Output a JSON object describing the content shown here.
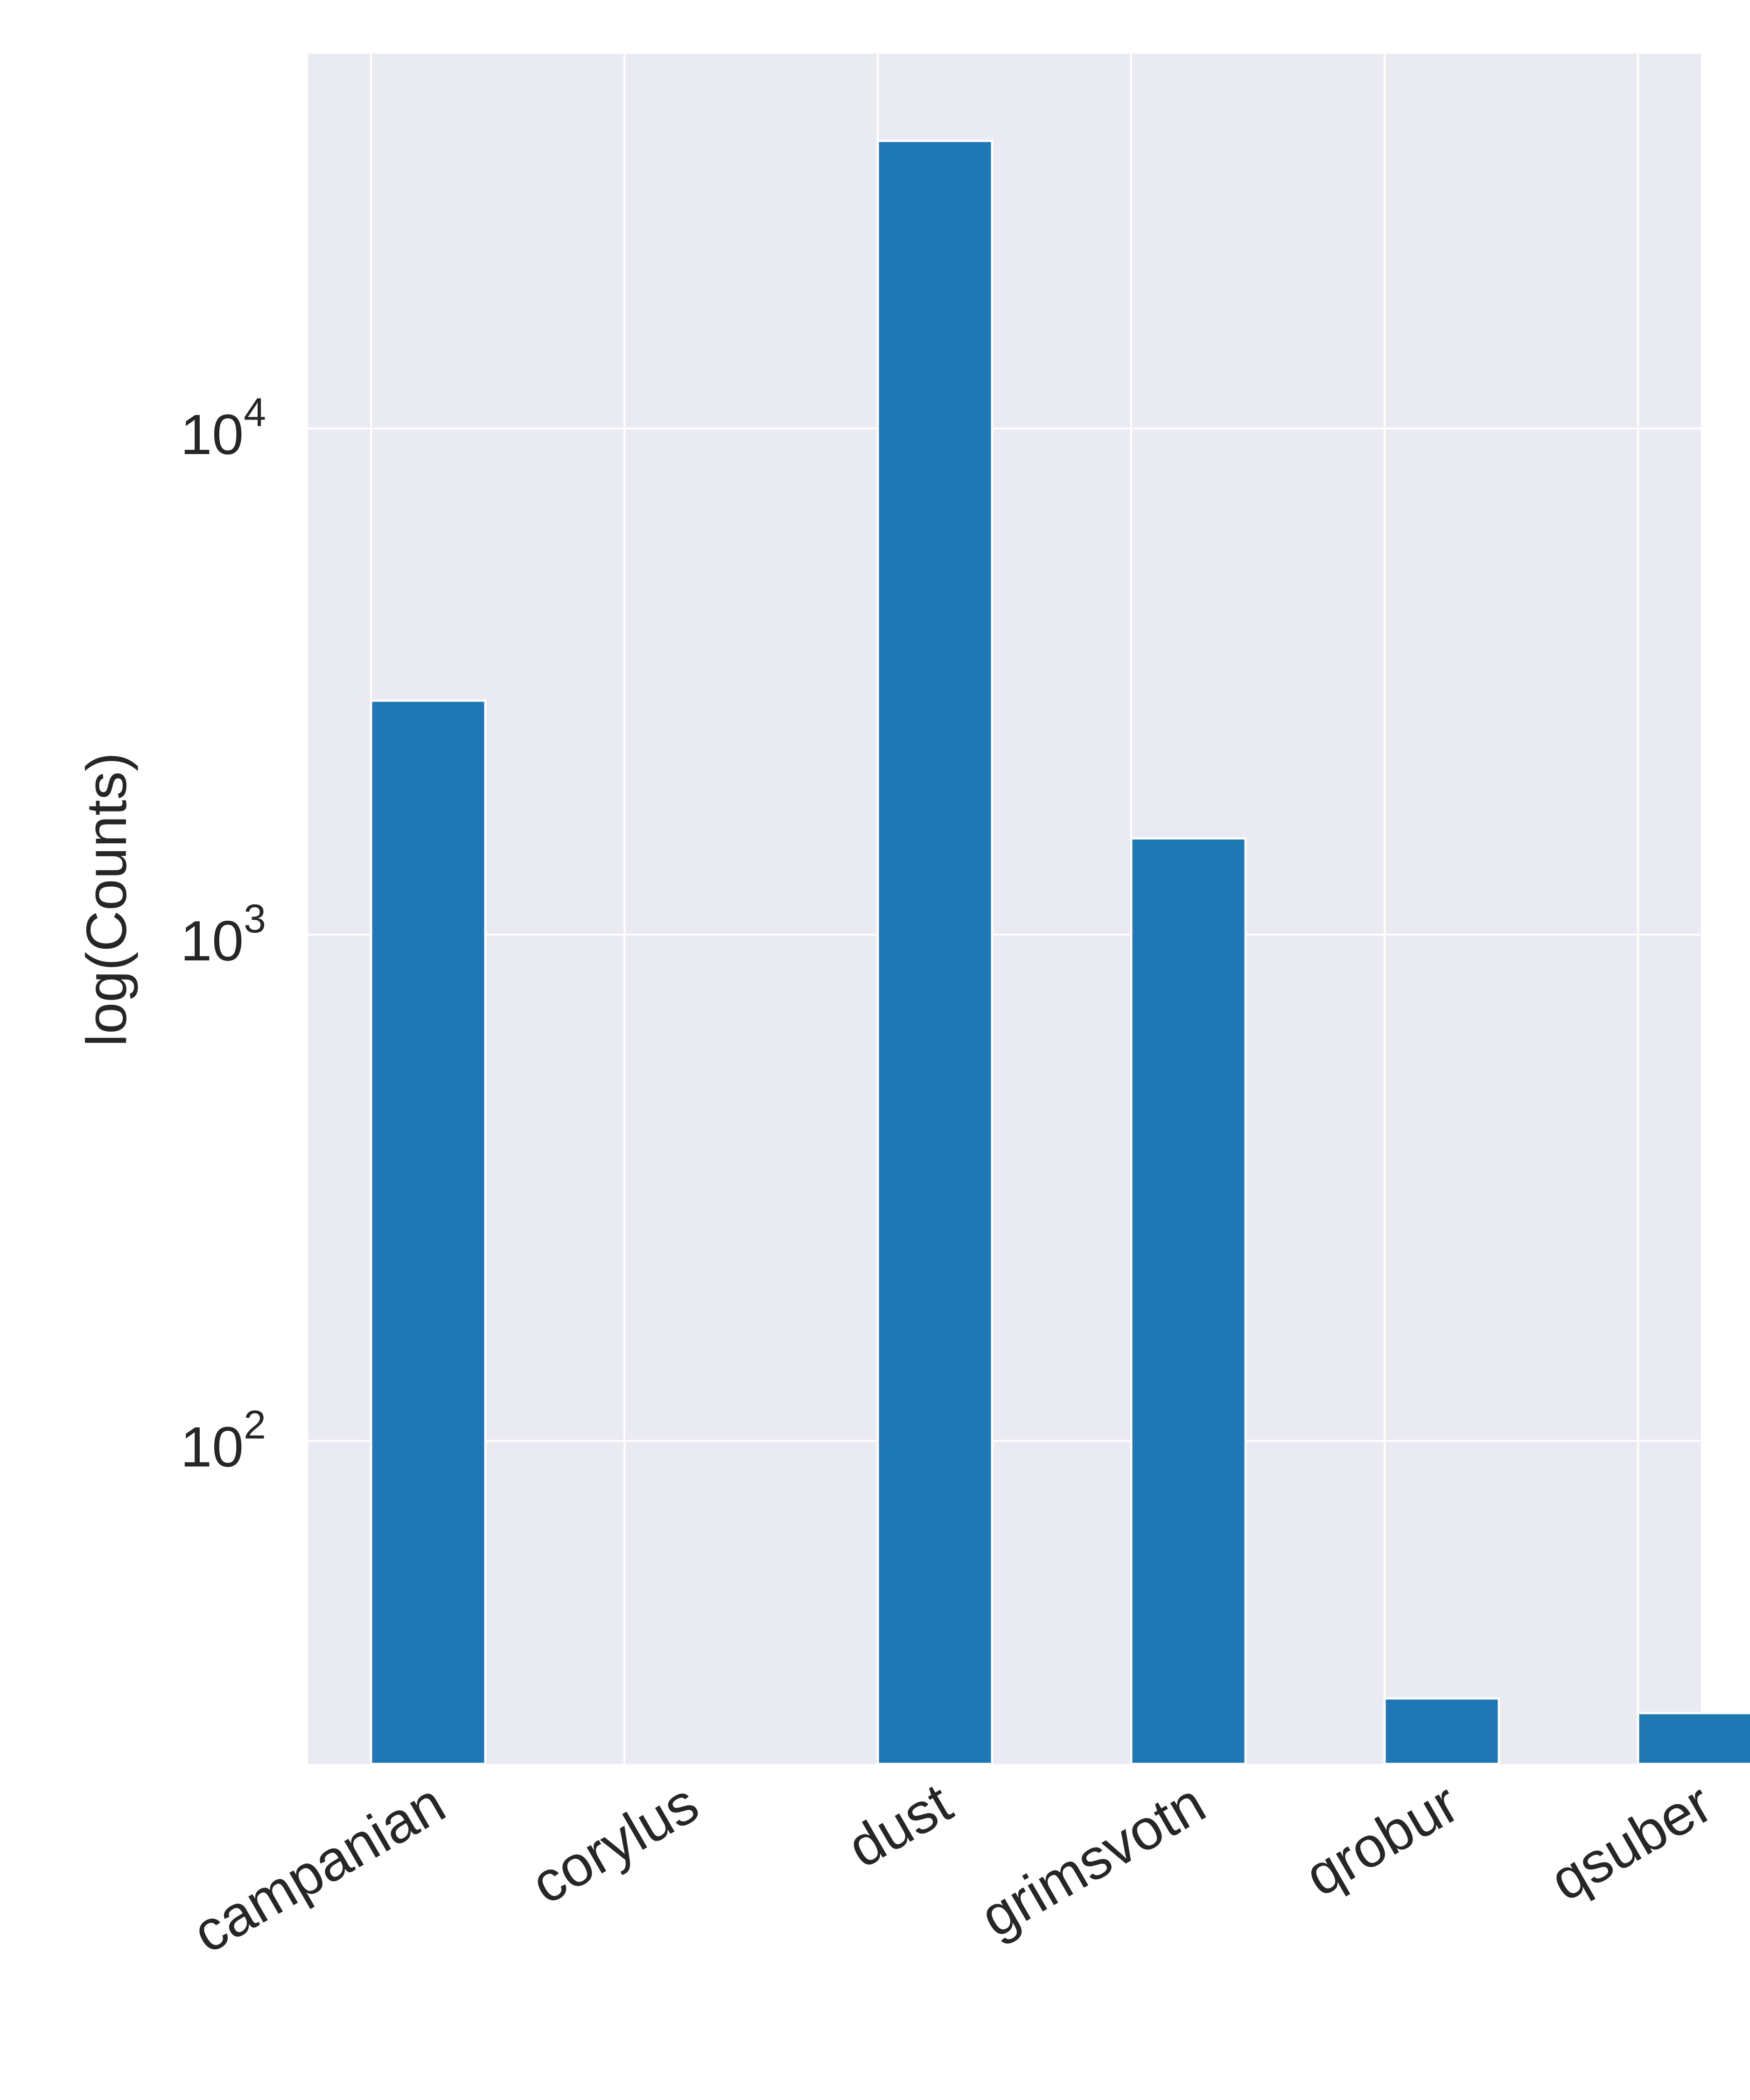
{
  "chart_data": {
    "type": "bar",
    "title": "",
    "xlabel": "",
    "ylabel": "log(Counts)",
    "yscale": "log",
    "ylim": [
      23,
      55000
    ],
    "yticks": [
      {
        "value": 100,
        "base": "10",
        "exponent": "2"
      },
      {
        "value": 1000,
        "base": "10",
        "exponent": "3"
      },
      {
        "value": 10000,
        "base": "10",
        "exponent": "4"
      }
    ],
    "categories": [
      "campanian",
      "corylus",
      "dust",
      "grimsvotn",
      "qrobur",
      "qsuber"
    ],
    "values": [
      2900,
      0,
      37000,
      1550,
      31,
      29
    ],
    "grid": true,
    "colors": {
      "bar": "#1f77b4",
      "axes_background": "#eaeaf2",
      "grid": "#ffffff",
      "text": "#262626"
    }
  }
}
